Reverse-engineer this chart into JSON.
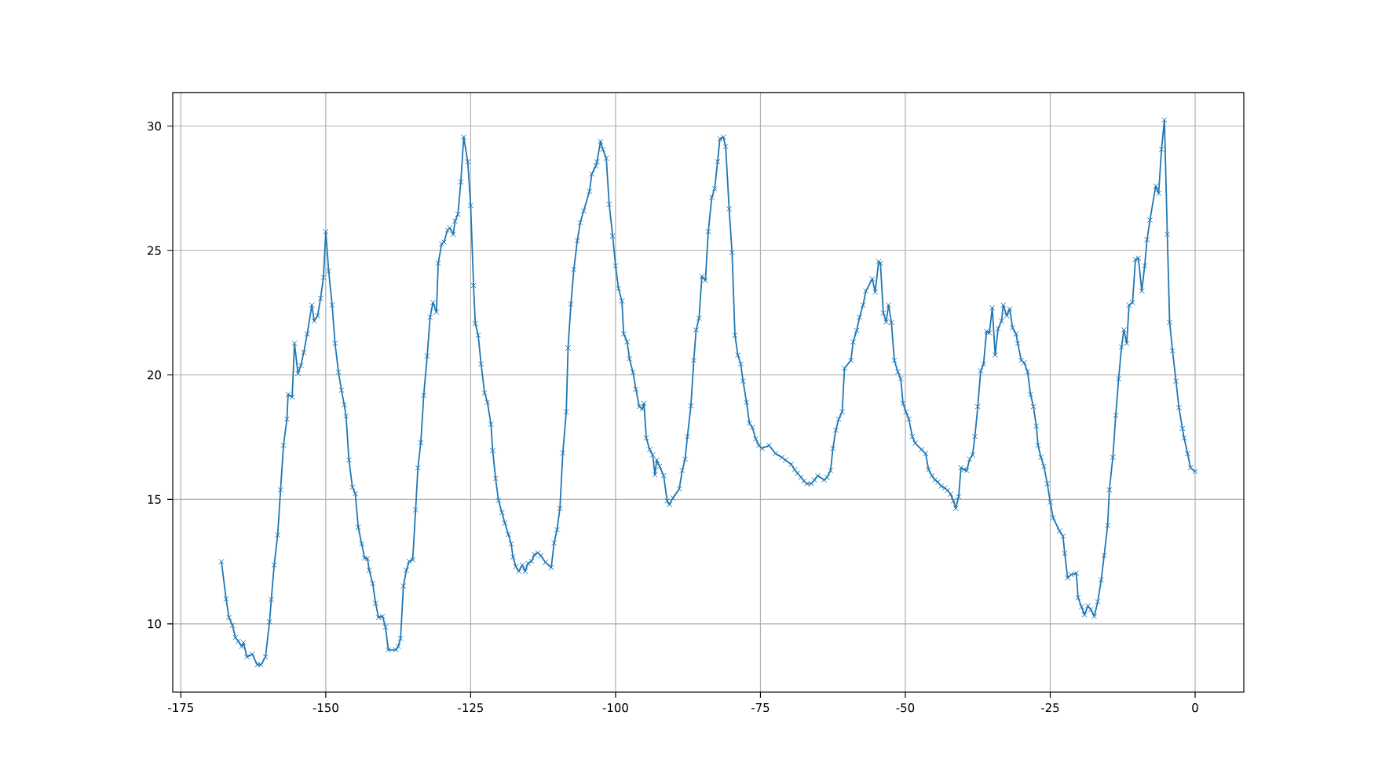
{
  "chart_data": {
    "type": "line",
    "color": "#1f77b4",
    "marker": "cross",
    "line_style": "solid",
    "grid": true,
    "xlim": [
      -176.4,
      8.4
    ],
    "ylim": [
      7.25,
      31.35
    ],
    "xticks": [
      -175,
      -150,
      -125,
      -100,
      -75,
      -50,
      -25,
      0
    ],
    "yticks": [
      10,
      15,
      20,
      25,
      30
    ],
    "x": [
      -168,
      -167.2,
      -166.7,
      -166.1,
      -165.6,
      -165.1,
      -164.5,
      -164.2,
      -163.6,
      -162.7,
      -161.8,
      -161.2,
      -160.4,
      -159.7,
      -159.4,
      -158.9,
      -158.3,
      -157.8,
      -157.3,
      -156.7,
      -156.5,
      -155.8,
      -155.4,
      -154.8,
      -154.3,
      -153.8,
      -153.2,
      -152.4,
      -152.0,
      -151.4,
      -150.9,
      -150.4,
      -150.0,
      -149.5,
      -148.9,
      -148.4,
      -147.8,
      -147.3,
      -146.8,
      -146.5,
      -146.0,
      -145.4,
      -144.9,
      -144.4,
      -143.8,
      -143.3,
      -142.8,
      -142.5,
      -141.9,
      -141.4,
      -140.9,
      -140.2,
      -139.7,
      -139.2,
      -137.9,
      -137.5,
      -137.1,
      -136.6,
      -136.1,
      -135.6,
      -135.0,
      -134.5,
      -134.1,
      -133.6,
      -133.1,
      -132.5,
      -132.0,
      -131.5,
      -130.9,
      -130.6,
      -130.0,
      -129.6,
      -129.0,
      -128.6,
      -128.0,
      -127.7,
      -127.2,
      -126.7,
      -126.2,
      -125.5,
      -125.0,
      -124.5,
      -124.2,
      -123.7,
      -123.2,
      -122.6,
      -122.1,
      -121.5,
      -121.2,
      -120.7,
      -120.2,
      -119.6,
      -119.1,
      -118.5,
      -118.0,
      -117.7,
      -117.2,
      -116.7,
      -116.1,
      -115.6,
      -115.1,
      -114.5,
      -114.0,
      -113.4,
      -112.9,
      -112.1,
      -111.1,
      -110.6,
      -110.1,
      -109.6,
      -109.1,
      -108.5,
      -108.2,
      -107.7,
      -107.2,
      -106.6,
      -106.1,
      -105.5,
      -104.5,
      -104.1,
      -103.4,
      -103.2,
      -102.6,
      -102.2,
      -101.6,
      -101.1,
      -100.5,
      -100.0,
      -99.5,
      -98.9,
      -98.6,
      -98.0,
      -97.6,
      -97.0,
      -96.5,
      -95.9,
      -95.4,
      -95.1,
      -94.7,
      -94.1,
      -93.6,
      -93.2,
      -92.9,
      -92.4,
      -91.7,
      -91.1,
      -90.7,
      -90.1,
      -89.0,
      -88.5,
      -88.0,
      -87.6,
      -87.0,
      -86.5,
      -86.1,
      -85.6,
      -85.1,
      -84.5,
      -84.0,
      -83.4,
      -82.9,
      -82.4,
      -82.0,
      -81.4,
      -81.0,
      -80.4,
      -79.9,
      -79.4,
      -78.9,
      -78.4,
      -78.0,
      -77.4,
      -76.9,
      -76.4,
      -75.8,
      -75.3,
      -74.7,
      -73.5,
      -72.4,
      -71.3,
      -70.7,
      -69.7,
      -69.1,
      -68.6,
      -68.0,
      -67.5,
      -67.0,
      -66.2,
      -65.7,
      -65.1,
      -64.0,
      -63.5,
      -62.9,
      -62.5,
      -62.0,
      -61.5,
      -60.9,
      -60.5,
      -59.4,
      -59.0,
      -58.4,
      -57.9,
      -57.3,
      -56.8,
      -55.7,
      -55.2,
      -54.6,
      -54.3,
      -53.8,
      -53.3,
      -52.9,
      -52.4,
      -51.9,
      -51.3,
      -50.8,
      -50.4,
      -49.9,
      -49.4,
      -48.8,
      -48.3,
      -47.2,
      -46.5,
      -46.0,
      -45.4,
      -44.9,
      -44.4,
      -43.8,
      -43.2,
      -42.7,
      -42.2,
      -41.7,
      -41.3,
      -40.8,
      -40.4,
      -39.9,
      -39.4,
      -38.9,
      -38.4,
      -38.0,
      -37.5,
      -37.0,
      -36.5,
      -36.0,
      -35.5,
      -35.0,
      -34.5,
      -34.0,
      -33.4,
      -33.1,
      -32.5,
      -32.0,
      -31.5,
      -30.9,
      -30.6,
      -30.0,
      -29.5,
      -28.9,
      -28.4,
      -27.9,
      -27.4,
      -27.1,
      -26.6,
      -26.1,
      -25.5,
      -25.0,
      -24.5,
      -23.4,
      -22.8,
      -22.5,
      -22.0,
      -21.4,
      -20.5,
      -20.2,
      -19.6,
      -19.1,
      -18.5,
      -18.0,
      -17.4,
      -16.8,
      -16.2,
      -15.7,
      -15.1,
      -14.8,
      -14.2,
      -13.7,
      -13.2,
      -12.7,
      -12.3,
      -11.8,
      -11.4,
      -10.8,
      -10.3,
      -9.8,
      -9.2,
      -8.7,
      -8.3,
      -7.8,
      -6.8,
      -6.3,
      -5.8,
      -5.3,
      -4.8,
      -4.4,
      -3.9,
      -3.3,
      -2.8,
      -2.2,
      -1.9,
      -1.3,
      -0.8,
      0
    ],
    "values": [
      12.5,
      11.0,
      10.25,
      9.94,
      9.45,
      9.3,
      9.09,
      9.24,
      8.67,
      8.78,
      8.35,
      8.35,
      8.67,
      10.08,
      10.97,
      12.36,
      13.57,
      15.38,
      17.17,
      18.23,
      19.22,
      19.11,
      21.27,
      20.06,
      20.38,
      20.91,
      21.65,
      22.81,
      22.17,
      22.38,
      23.08,
      23.92,
      25.76,
      24.18,
      22.81,
      21.27,
      20.11,
      19.39,
      18.8,
      18.35,
      16.58,
      15.49,
      15.23,
      13.88,
      13.21,
      12.64,
      12.62,
      12.15,
      11.62,
      10.82,
      10.25,
      10.3,
      9.87,
      8.95,
      8.95,
      9.09,
      9.41,
      11.52,
      12.15,
      12.51,
      12.57,
      14.58,
      16.27,
      17.28,
      19.18,
      20.76,
      22.32,
      22.91,
      22.53,
      24.49,
      25.27,
      25.34,
      25.82,
      25.91,
      25.65,
      26.18,
      26.46,
      27.76,
      29.56,
      28.57,
      26.81,
      23.59,
      22.07,
      21.6,
      20.44,
      19.28,
      18.9,
      18.02,
      16.96,
      15.84,
      14.96,
      14.47,
      14.05,
      13.59,
      13.21,
      12.68,
      12.3,
      12.11,
      12.36,
      12.11,
      12.43,
      12.51,
      12.78,
      12.85,
      12.74,
      12.47,
      12.26,
      13.25,
      13.78,
      14.64,
      16.86,
      18.52,
      21.08,
      22.85,
      24.24,
      25.4,
      26.12,
      26.6,
      27.38,
      28.08,
      28.4,
      28.57,
      29.39,
      29.07,
      28.71,
      26.86,
      25.59,
      24.39,
      23.48,
      22.97,
      21.65,
      21.33,
      20.65,
      20.11,
      19.43,
      18.73,
      18.63,
      18.86,
      17.47,
      17.0,
      16.79,
      15.99,
      16.58,
      16.33,
      15.95,
      14.94,
      14.79,
      15.06,
      15.42,
      16.16,
      16.62,
      17.53,
      18.76,
      20.59,
      21.81,
      22.28,
      23.97,
      23.8,
      25.76,
      27.13,
      27.49,
      28.57,
      29.49,
      29.56,
      29.18,
      26.67,
      24.92,
      21.6,
      20.8,
      20.44,
      19.75,
      18.9,
      18.06,
      17.89,
      17.43,
      17.17,
      17.05,
      17.17,
      16.84,
      16.69,
      16.58,
      16.41,
      16.2,
      16.05,
      15.89,
      15.74,
      15.63,
      15.63,
      15.78,
      15.95,
      15.78,
      15.89,
      16.16,
      17.05,
      17.78,
      18.23,
      18.52,
      20.27,
      20.59,
      21.33,
      21.79,
      22.32,
      22.81,
      23.38,
      23.86,
      23.33,
      24.56,
      24.49,
      22.49,
      22.13,
      22.81,
      22.11,
      20.59,
      20.13,
      19.85,
      18.86,
      18.52,
      18.23,
      17.53,
      17.26,
      17.0,
      16.84,
      16.2,
      15.95,
      15.78,
      15.7,
      15.53,
      15.46,
      15.36,
      15.21,
      14.94,
      14.64,
      15.11,
      16.27,
      16.2,
      16.16,
      16.62,
      16.79,
      17.53,
      18.73,
      20.17,
      20.44,
      21.75,
      21.69,
      22.7,
      20.8,
      21.86,
      22.17,
      22.81,
      22.38,
      22.66,
      21.9,
      21.65,
      21.27,
      20.59,
      20.49,
      20.13,
      19.22,
      18.73,
      17.95,
      17.17,
      16.69,
      16.33,
      15.63,
      14.89,
      14.26,
      13.73,
      13.52,
      12.83,
      11.84,
      11.98,
      12.03,
      11.05,
      10.68,
      10.36,
      10.72,
      10.57,
      10.3,
      10.89,
      11.77,
      12.74,
      13.95,
      15.38,
      16.69,
      18.38,
      19.85,
      21.12,
      21.81,
      21.27,
      22.81,
      22.91,
      24.64,
      24.7,
      23.38,
      24.39,
      25.44,
      26.22,
      27.59,
      27.3,
      29.07,
      30.25,
      25.65,
      22.11,
      20.97,
      19.75,
      18.69,
      17.85,
      17.47,
      16.84,
      16.27,
      16.12
    ]
  }
}
